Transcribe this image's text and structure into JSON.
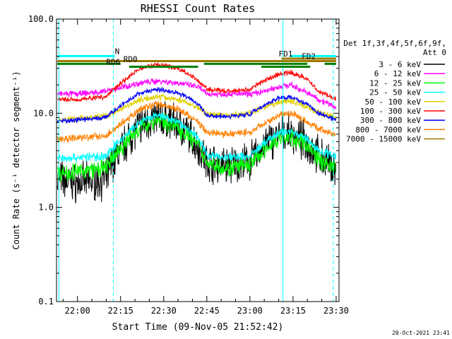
{
  "chart_data": {
    "type": "line",
    "title": "RHESSI Count Rates",
    "xlabel": "Start Time (09-Nov-05 21:52:42)",
    "ylabel": "Count Rate (s⁻¹ detector segment⁻¹)",
    "y_scale": "log",
    "ylim": [
      0.1,
      100.0
    ],
    "xlim": [
      "21:52:42",
      "23:31:00"
    ],
    "y_tick_labels": [
      "0.1",
      "1.0",
      "10.0",
      "100.0"
    ],
    "x_tick_labels": [
      "22:00",
      "22:15",
      "22:30",
      "22:45",
      "23:00",
      "23:15",
      "23:30"
    ],
    "grid": false,
    "timestamp": "20-Oct-2021 23:41",
    "legend": {
      "placement": "right",
      "header": [
        "Det 1f,3f,4f,5f,6f,9f,",
        "Att 0"
      ]
    },
    "series": [
      {
        "name": "3 - 6 keV",
        "color": "#000000",
        "noise": 0.3,
        "x": [
          "21:53",
          "22:00",
          "22:10",
          "22:16",
          "22:22",
          "22:28",
          "22:35",
          "22:42",
          "22:45",
          "22:52",
          "23:00",
          "23:05",
          "23:10",
          "23:14",
          "23:19",
          "23:24",
          "23:30"
        ],
        "y": [
          2.0,
          1.8,
          2.0,
          4.5,
          7.5,
          9.0,
          7.5,
          4.5,
          3.0,
          2.8,
          3.0,
          4.5,
          5.8,
          6.0,
          5.0,
          3.5,
          2.5
        ]
      },
      {
        "name": "6 - 12 keV",
        "color": "#ff00ff",
        "noise": 0.05,
        "x": [
          "21:53",
          "22:00",
          "22:10",
          "22:16",
          "22:22",
          "22:28",
          "22:35",
          "22:42",
          "22:45",
          "22:52",
          "23:00",
          "23:05",
          "23:10",
          "23:14",
          "23:19",
          "23:24",
          "23:30"
        ],
        "y": [
          16,
          16,
          17,
          19,
          21,
          22,
          21,
          19,
          16,
          16,
          16,
          17,
          19,
          20,
          17,
          14,
          11.5
        ]
      },
      {
        "name": "12 - 25 keV",
        "color": "#00ff00",
        "noise": 0.14,
        "x": [
          "21:53",
          "22:00",
          "22:10",
          "22:16",
          "22:22",
          "22:28",
          "22:35",
          "22:42",
          "22:45",
          "22:52",
          "23:00",
          "23:05",
          "23:10",
          "23:14",
          "23:19",
          "23:24",
          "23:30"
        ],
        "y": [
          2.3,
          2.4,
          2.6,
          4.5,
          7.0,
          8.5,
          7.0,
          4.5,
          3.0,
          2.6,
          2.8,
          4.0,
          5.3,
          5.5,
          4.8,
          3.2,
          2.6
        ]
      },
      {
        "name": "25 - 50 keV",
        "color": "#00ffff",
        "noise": 0.07,
        "x": [
          "21:53",
          "22:00",
          "22:10",
          "22:16",
          "22:22",
          "22:28",
          "22:35",
          "22:42",
          "22:45",
          "22:52",
          "23:00",
          "23:05",
          "23:10",
          "23:14",
          "23:19",
          "23:24",
          "23:30"
        ],
        "y": [
          3.3,
          3.4,
          3.5,
          5.5,
          8.0,
          9.5,
          8.0,
          5.5,
          3.6,
          3.4,
          3.5,
          4.8,
          6.2,
          6.5,
          5.5,
          4.0,
          3.5
        ]
      },
      {
        "name": "50 - 100 keV",
        "color": "#e0d000",
        "noise": 0.05,
        "x": [
          "21:53",
          "22:00",
          "22:10",
          "22:16",
          "22:22",
          "22:28",
          "22:35",
          "22:42",
          "22:45",
          "22:52",
          "23:00",
          "23:05",
          "23:10",
          "23:14",
          "23:19",
          "23:24",
          "23:30"
        ],
        "y": [
          8.5,
          8.8,
          9.3,
          11.5,
          14,
          15,
          14,
          11.5,
          9.8,
          9.5,
          10,
          11.5,
          13,
          13.5,
          12,
          10,
          9
        ]
      },
      {
        "name": "100 - 300 keV",
        "color": "#ff0000",
        "noise": 0.04,
        "x": [
          "21:53",
          "22:00",
          "22:10",
          "22:16",
          "22:22",
          "22:28",
          "22:35",
          "22:42",
          "22:45",
          "22:52",
          "23:00",
          "23:05",
          "23:10",
          "23:14",
          "23:19",
          "23:24",
          "23:30"
        ],
        "y": [
          14,
          14,
          15,
          22,
          30,
          33,
          30,
          22,
          18,
          17,
          18,
          22,
          26,
          27,
          24,
          17,
          14
        ]
      },
      {
        "name": "300 - 800 keV",
        "color": "#0000ff",
        "noise": 0.04,
        "x": [
          "21:53",
          "22:00",
          "22:10",
          "22:16",
          "22:22",
          "22:28",
          "22:35",
          "22:42",
          "22:45",
          "22:52",
          "23:00",
          "23:05",
          "23:10",
          "23:14",
          "23:19",
          "23:24",
          "23:30"
        ],
        "y": [
          8.2,
          8.5,
          9,
          12.5,
          16.5,
          18,
          16.5,
          12.5,
          9.5,
          9.2,
          9.8,
          12,
          14.5,
          15,
          13,
          10,
          8.5
        ]
      },
      {
        "name": "800 - 7000 keV",
        "color": "#ff8000",
        "noise": 0.06,
        "x": [
          "21:53",
          "22:00",
          "22:10",
          "22:16",
          "22:22",
          "22:28",
          "22:35",
          "22:42",
          "22:45",
          "22:52",
          "23:00",
          "23:05",
          "23:10",
          "23:14",
          "23:19",
          "23:24",
          "23:30"
        ],
        "y": [
          5.3,
          5.5,
          5.8,
          8,
          11,
          12.5,
          11,
          8,
          6.2,
          6,
          6.3,
          7.8,
          9.6,
          10,
          8.5,
          6.8,
          5.8
        ]
      },
      {
        "name": "7000 - 15000 keV",
        "color": "#9c7c00",
        "noise": 0.0,
        "x": [],
        "y": []
      }
    ],
    "annotations": {
      "bars": [
        {
          "label": "N",
          "color": "#00ffff",
          "y": 40.5,
          "segments": [
            [
              "21:53",
              "22:13"
            ],
            [
              "23:14",
              "23:30"
            ]
          ],
          "label_at": "22:13"
        },
        {
          "label": "FD1",
          "color": "#9c7c00",
          "y": 38.0,
          "segments": [
            [
              "23:11",
              "23:30"
            ]
          ],
          "label_at": "23:10"
        },
        {
          "label": "FD2",
          "color": "#9c7c00",
          "y": 35.8,
          "segments": [
            [
              "21:53",
              "23:30"
            ]
          ],
          "label_at": "23:18"
        },
        {
          "label": "RD0",
          "color": "#008000",
          "y": 33.5,
          "segments": [
            [
              "21:53",
              "22:15"
            ],
            [
              "22:44",
              "23:20"
            ],
            [
              "23:26",
              "23:30"
            ]
          ],
          "label_at": "22:16"
        },
        {
          "label": "RD6",
          "color": "#008000",
          "y": 31.2,
          "segments": [
            [
              "22:18",
              "22:42"
            ],
            [
              "23:04",
              "23:21"
            ]
          ],
          "label_at": "22:10"
        }
      ],
      "vlines": [
        {
          "x": "21:53:30",
          "color": "#00ffff",
          "style": "solid"
        },
        {
          "x": "22:12:30",
          "color": "#00ffff",
          "style": "dashed"
        },
        {
          "x": "23:11:30",
          "color": "#00ffff",
          "style": "solid"
        },
        {
          "x": "23:29:00",
          "color": "#00ffff",
          "style": "dashed"
        }
      ]
    }
  }
}
